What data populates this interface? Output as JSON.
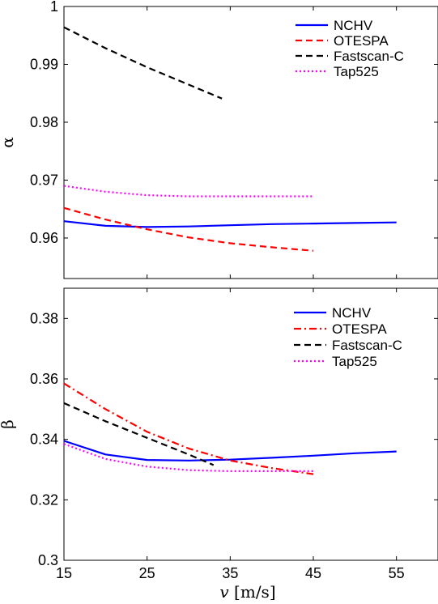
{
  "chart_data": [
    {
      "type": "line",
      "ylabel": "α",
      "xlim": [
        15,
        60
      ],
      "ylim": [
        0.953,
        1.0
      ],
      "yticks": [
        0.96,
        0.97,
        0.98,
        0.99,
        1
      ],
      "ytick_labels": [
        "0.96",
        "0.97",
        "0.98",
        "0.99",
        "1"
      ],
      "legend_position": "top-right",
      "series": [
        {
          "name": "NCHV",
          "color": "#0000ff",
          "dash": "solid",
          "x": [
            15,
            20,
            25,
            30,
            35,
            40,
            45,
            50,
            55
          ],
          "y": [
            0.9629,
            0.9621,
            0.9619,
            0.962,
            0.9622,
            0.9624,
            0.9625,
            0.9626,
            0.9627
          ]
        },
        {
          "name": "OTESPA",
          "color": "#ff0000",
          "dash": "dashed",
          "x": [
            15,
            20,
            25,
            30,
            35,
            40,
            45
          ],
          "y": [
            0.9652,
            0.9632,
            0.9615,
            0.9601,
            0.9591,
            0.9584,
            0.9578
          ]
        },
        {
          "name": "Fastscan-C",
          "color": "#000000",
          "dash": "dashed",
          "x": [
            15,
            20,
            25,
            30,
            34
          ],
          "y": [
            0.9964,
            0.9928,
            0.9895,
            0.9865,
            0.9841
          ]
        },
        {
          "name": "Tap525",
          "color": "#ff00ff",
          "dash": "dotted",
          "x": [
            15,
            20,
            25,
            30,
            35,
            40,
            45
          ],
          "y": [
            0.969,
            0.968,
            0.9674,
            0.9672,
            0.9672,
            0.9672,
            0.9672
          ]
        }
      ]
    },
    {
      "type": "line",
      "ylabel": "β",
      "xlabel_var": "v",
      "xlabel_unit": " [m/s]",
      "xlim": [
        15,
        60
      ],
      "ylim": [
        0.3,
        0.39
      ],
      "xticks": [
        15,
        25,
        35,
        45,
        55
      ],
      "xtick_labels": [
        "15",
        "25",
        "35",
        "45",
        "55"
      ],
      "yticks": [
        0.3,
        0.32,
        0.34,
        0.36,
        0.38
      ],
      "ytick_labels": [
        "0.3",
        "0.32",
        "0.34",
        "0.36",
        "0.38"
      ],
      "legend_position": "top-right",
      "series": [
        {
          "name": "NCHV",
          "color": "#0000ff",
          "dash": "solid",
          "x": [
            15,
            20,
            25,
            30,
            35,
            40,
            45,
            50,
            55
          ],
          "y": [
            0.3395,
            0.335,
            0.3332,
            0.333,
            0.3333,
            0.3339,
            0.3346,
            0.3354,
            0.336
          ]
        },
        {
          "name": "OTESPA",
          "color": "#ff0000",
          "dash": "dashdot",
          "x": [
            15,
            20,
            25,
            30,
            35,
            40,
            45
          ],
          "y": [
            0.3585,
            0.35,
            0.3425,
            0.337,
            0.333,
            0.3305,
            0.3285
          ]
        },
        {
          "name": "Fastscan-C",
          "color": "#000000",
          "dash": "dashed",
          "x": [
            15,
            20,
            25,
            30,
            33
          ],
          "y": [
            0.352,
            0.346,
            0.3405,
            0.335,
            0.3315
          ]
        },
        {
          "name": "Tap525",
          "color": "#ff00ff",
          "dash": "dotted",
          "x": [
            15,
            20,
            25,
            30,
            35,
            40,
            45
          ],
          "y": [
            0.3385,
            0.3335,
            0.331,
            0.3298,
            0.3295,
            0.3295,
            0.3295
          ]
        }
      ]
    }
  ]
}
